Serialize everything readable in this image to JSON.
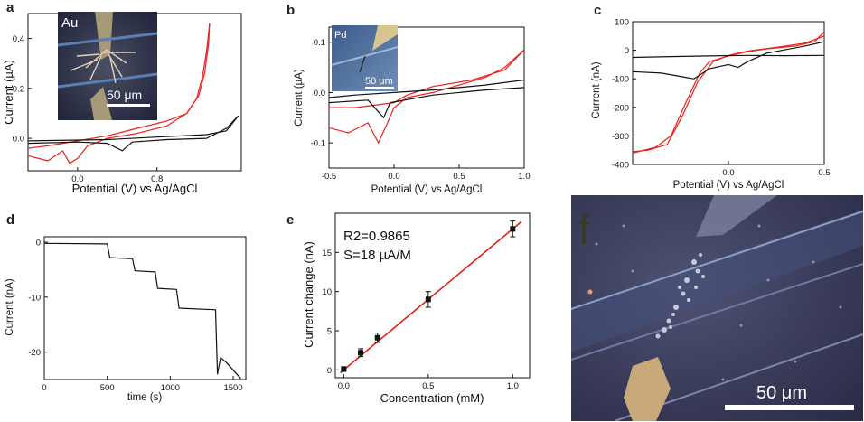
{
  "figure": {
    "panel_letters": [
      "a",
      "b",
      "c",
      "d",
      "e",
      "f"
    ]
  },
  "colors": {
    "red": "#e8221c",
    "black": "#111111",
    "fit": "#e02010"
  },
  "chart_data": [
    {
      "id": "a",
      "type": "line",
      "xlabel": "Potential (V) vs Ag/AgCl",
      "ylabel": "Current (µA)",
      "xlim": [
        -0.5,
        1.65
      ],
      "ylim": [
        -0.13,
        0.5
      ],
      "xticks": [
        {
          "v": 0.0,
          "label": "0.0"
        },
        {
          "v": 0.8,
          "label": "0.8"
        }
      ],
      "yticks": [
        {
          "v": 0.0,
          "label": "0.0"
        },
        {
          "v": 0.2,
          "label": "0.2"
        },
        {
          "v": 0.4,
          "label": "0.4"
        }
      ],
      "inset": {
        "metal": "Au",
        "scale_bar": "50 μm"
      },
      "series": [
        {
          "name": "red-forward",
          "color": "red",
          "points": [
            [
              -0.5,
              -0.07
            ],
            [
              -0.3,
              -0.09
            ],
            [
              -0.15,
              -0.05
            ],
            [
              -0.08,
              -0.1
            ],
            [
              0.0,
              -0.08
            ],
            [
              0.1,
              -0.03
            ],
            [
              0.3,
              0.0
            ],
            [
              0.6,
              0.02
            ],
            [
              0.9,
              0.05
            ],
            [
              1.1,
              0.1
            ],
            [
              1.2,
              0.16
            ],
            [
              1.26,
              0.25
            ],
            [
              1.3,
              0.35
            ],
            [
              1.33,
              0.46
            ]
          ]
        },
        {
          "name": "red-reverse",
          "color": "red",
          "points": [
            [
              1.33,
              0.46
            ],
            [
              1.32,
              0.38
            ],
            [
              1.28,
              0.26
            ],
            [
              1.22,
              0.17
            ],
            [
              1.1,
              0.1
            ],
            [
              0.9,
              0.07
            ],
            [
              0.6,
              0.04
            ],
            [
              0.3,
              0.01
            ],
            [
              0.0,
              -0.01
            ],
            [
              -0.3,
              -0.03
            ],
            [
              -0.5,
              -0.04
            ]
          ]
        },
        {
          "name": "black-forward",
          "color": "black",
          "points": [
            [
              -0.5,
              -0.02
            ],
            [
              0.0,
              -0.015
            ],
            [
              0.3,
              -0.02
            ],
            [
              0.45,
              -0.05
            ],
            [
              0.55,
              -0.015
            ],
            [
              0.9,
              -0.005
            ],
            [
              1.3,
              0.0
            ],
            [
              1.5,
              0.04
            ],
            [
              1.62,
              0.09
            ]
          ]
        },
        {
          "name": "black-reverse",
          "color": "black",
          "points": [
            [
              1.62,
              0.09
            ],
            [
              1.5,
              0.03
            ],
            [
              1.3,
              0.015
            ],
            [
              0.8,
              0.005
            ],
            [
              0.3,
              -0.005
            ],
            [
              -0.5,
              -0.01
            ]
          ]
        }
      ]
    },
    {
      "id": "b",
      "type": "line",
      "xlabel": "Potential (V) vs Ag/AgCl",
      "ylabel": "Current (µA)",
      "xlim": [
        -0.5,
        1.0
      ],
      "ylim": [
        -0.15,
        0.13
      ],
      "xticks": [
        {
          "v": -0.5,
          "label": "-0.5"
        },
        {
          "v": 0.0,
          "label": "0.0"
        },
        {
          "v": 0.5,
          "label": "0.5"
        },
        {
          "v": 1.0,
          "label": "1.0"
        }
      ],
      "yticks": [
        {
          "v": -0.1,
          "label": "-0.1"
        },
        {
          "v": 0.0,
          "label": "0.0"
        },
        {
          "v": 0.1,
          "label": "0.1"
        }
      ],
      "inset": {
        "metal": "Pd",
        "scale_bar": "50 μm"
      },
      "series": [
        {
          "name": "red-forward",
          "color": "red",
          "points": [
            [
              -0.5,
              -0.07
            ],
            [
              -0.35,
              -0.08
            ],
            [
              -0.2,
              -0.06
            ],
            [
              -0.12,
              -0.1
            ],
            [
              -0.05,
              -0.06
            ],
            [
              0.0,
              -0.03
            ],
            [
              0.1,
              -0.01
            ],
            [
              0.3,
              0.0
            ],
            [
              0.5,
              0.015
            ],
            [
              0.7,
              0.03
            ],
            [
              0.85,
              0.05
            ],
            [
              1.0,
              0.085
            ]
          ]
        },
        {
          "name": "red-reverse",
          "color": "red",
          "points": [
            [
              1.0,
              0.085
            ],
            [
              0.85,
              0.045
            ],
            [
              0.6,
              0.025
            ],
            [
              0.3,
              0.012
            ],
            [
              0.1,
              -0.005
            ],
            [
              0.0,
              -0.02
            ],
            [
              -0.3,
              -0.03
            ],
            [
              -0.5,
              -0.03
            ]
          ]
        },
        {
          "name": "black-forward",
          "color": "black",
          "points": [
            [
              -0.5,
              -0.02
            ],
            [
              -0.2,
              -0.015
            ],
            [
              -0.08,
              -0.05
            ],
            [
              -0.03,
              -0.02
            ],
            [
              0.3,
              -0.005
            ],
            [
              0.7,
              0.005
            ],
            [
              1.0,
              0.01
            ]
          ]
        },
        {
          "name": "black-reverse",
          "color": "black",
          "points": [
            [
              1.0,
              0.025
            ],
            [
              0.7,
              0.015
            ],
            [
              0.3,
              0.005
            ],
            [
              0.0,
              0.0
            ],
            [
              -0.3,
              -0.005
            ],
            [
              -0.5,
              -0.01
            ]
          ]
        }
      ]
    },
    {
      "id": "c",
      "type": "line",
      "xlabel": "Potential (V) vs Ag/AgCl",
      "ylabel": "Current (nA)",
      "xlim": [
        -0.5,
        0.5
      ],
      "ylim": [
        -400,
        100
      ],
      "xticks": [
        {
          "v": 0.0,
          "label": "0.0"
        },
        {
          "v": 0.5,
          "label": "0.5"
        }
      ],
      "yticks": [
        {
          "v": 100,
          "label": "100"
        },
        {
          "v": 0,
          "label": "0"
        },
        {
          "v": -100,
          "label": "-100"
        },
        {
          "v": -200,
          "label": "-200"
        },
        {
          "v": -300,
          "label": "-300"
        },
        {
          "v": -400,
          "label": "-400"
        }
      ],
      "series": [
        {
          "name": "red-forward",
          "color": "red",
          "points": [
            [
              -0.5,
              -360
            ],
            [
              -0.38,
              -340
            ],
            [
              -0.3,
              -300
            ],
            [
              -0.22,
              -180
            ],
            [
              -0.15,
              -80
            ],
            [
              -0.1,
              -40
            ],
            [
              0.0,
              -20
            ],
            [
              0.1,
              -5
            ],
            [
              0.2,
              5
            ],
            [
              0.35,
              15
            ],
            [
              0.45,
              30
            ],
            [
              0.5,
              65
            ]
          ]
        },
        {
          "name": "red-reverse",
          "color": "red",
          "points": [
            [
              0.5,
              50
            ],
            [
              0.4,
              25
            ],
            [
              0.25,
              10
            ],
            [
              0.1,
              -3
            ],
            [
              0.0,
              -18
            ],
            [
              -0.08,
              -40
            ],
            [
              -0.16,
              -110
            ],
            [
              -0.24,
              -230
            ],
            [
              -0.32,
              -330
            ],
            [
              -0.42,
              -350
            ],
            [
              -0.5,
              -355
            ]
          ]
        },
        {
          "name": "black-forward",
          "color": "black",
          "points": [
            [
              -0.5,
              -75
            ],
            [
              -0.35,
              -80
            ],
            [
              -0.18,
              -100
            ],
            [
              -0.1,
              -65
            ],
            [
              0.0,
              -50
            ],
            [
              0.05,
              -60
            ],
            [
              0.1,
              -40
            ],
            [
              0.2,
              -10
            ],
            [
              0.4,
              15
            ],
            [
              0.5,
              30
            ]
          ]
        },
        {
          "name": "black-reverse",
          "color": "black",
          "points": [
            [
              0.5,
              -18
            ],
            [
              0.3,
              -19
            ],
            [
              0.1,
              -18
            ],
            [
              -0.1,
              -20
            ],
            [
              -0.3,
              -22
            ],
            [
              -0.5,
              -25
            ]
          ]
        }
      ]
    },
    {
      "id": "d",
      "type": "line",
      "xlabel": "time (s)",
      "ylabel": "Current (nA)",
      "xlim": [
        0,
        1600
      ],
      "ylim": [
        -25,
        1
      ],
      "xticks": [
        {
          "v": 0,
          "label": "0"
        },
        {
          "v": 500,
          "label": "500"
        },
        {
          "v": 1000,
          "label": "1000"
        },
        {
          "v": 1500,
          "label": "1500"
        }
      ],
      "yticks": [
        {
          "v": 0,
          "label": "0"
        },
        {
          "v": -10,
          "label": "-10"
        },
        {
          "v": -20,
          "label": "-20"
        }
      ],
      "series": [
        {
          "name": "amperometric",
          "color": "black",
          "points": [
            [
              0,
              -0.2
            ],
            [
              500,
              -0.3
            ],
            [
              520,
              -2.8
            ],
            [
              700,
              -3.0
            ],
            [
              720,
              -5.2
            ],
            [
              880,
              -5.4
            ],
            [
              900,
              -8.4
            ],
            [
              1050,
              -8.6
            ],
            [
              1070,
              -12.0
            ],
            [
              1360,
              -12.3
            ],
            [
              1375,
              -24.0
            ],
            [
              1400,
              -21.0
            ],
            [
              1450,
              -22.0
            ],
            [
              1500,
              -23.3
            ],
            [
              1560,
              -24.8
            ]
          ]
        }
      ]
    },
    {
      "id": "e",
      "type": "scatter",
      "xlabel": "Concentration (mM)",
      "ylabel": "Current change (nA)",
      "xlim": [
        -0.05,
        1.1
      ],
      "ylim": [
        -1,
        20
      ],
      "xticks": [
        {
          "v": 0.0,
          "label": "0.0"
        },
        {
          "v": 0.5,
          "label": "0.5"
        },
        {
          "v": 1.0,
          "label": "1.0"
        }
      ],
      "yticks": [
        {
          "v": 0,
          "label": "0"
        },
        {
          "v": 5,
          "label": "5"
        },
        {
          "v": 10,
          "label": "10"
        },
        {
          "v": 15,
          "label": "15"
        }
      ],
      "annotations": [
        "R2=0.9865",
        "S=18 µA/M"
      ],
      "x": [
        0.0,
        0.1,
        0.2,
        0.5,
        1.0
      ],
      "y": [
        0.1,
        2.2,
        4.1,
        9.0,
        18.0
      ],
      "error": [
        0.3,
        0.5,
        0.6,
        1.0,
        1.0
      ],
      "fit_line": {
        "slope": 18.0,
        "intercept": 0.0,
        "x_range": [
          -0.02,
          1.05
        ]
      }
    }
  ],
  "panel_f": {
    "scale_bar": "50 μm"
  }
}
